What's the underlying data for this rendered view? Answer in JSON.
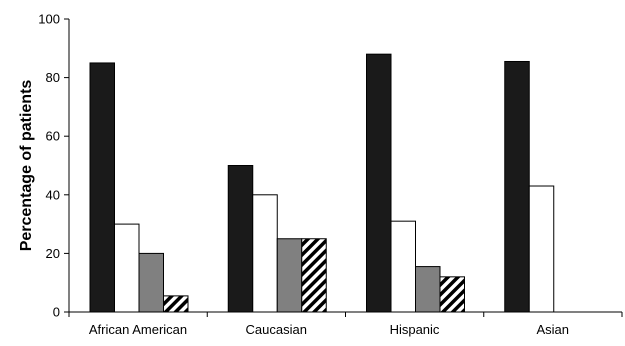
{
  "chart_data": {
    "type": "bar",
    "title": "",
    "xlabel": "",
    "ylabel": "Percentage of patients",
    "ylim": [
      0,
      100
    ],
    "yticks": [
      0,
      20,
      40,
      60,
      80,
      100
    ],
    "grid": false,
    "legend": "none",
    "categories": [
      "African American",
      "Caucasian",
      "Hispanic",
      "Asian"
    ],
    "series": [
      {
        "fill": "black",
        "color": "#1a1a1a",
        "values": [
          85,
          50,
          88,
          85.5
        ]
      },
      {
        "fill": "white",
        "color": "#ffffff",
        "values": [
          30,
          40,
          31,
          43
        ]
      },
      {
        "fill": "gray",
        "color": "#808080",
        "values": [
          20,
          25,
          15.5,
          0
        ]
      },
      {
        "fill": "diagonal-stripes",
        "color": "#000000",
        "values": [
          5.5,
          25,
          12,
          0
        ]
      }
    ]
  }
}
